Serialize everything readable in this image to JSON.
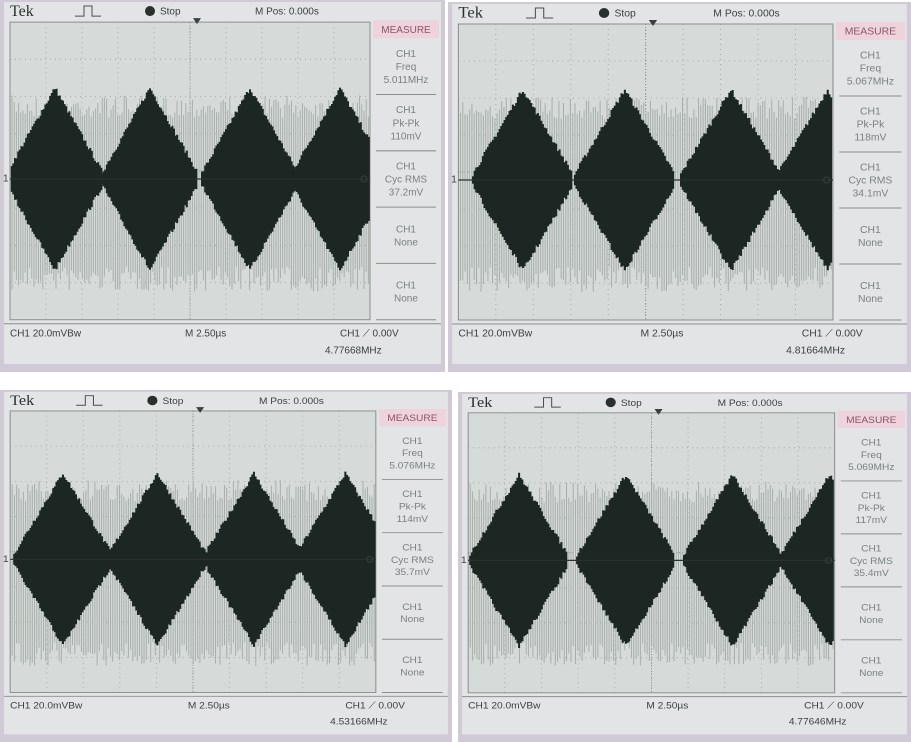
{
  "panels": [
    {
      "header": {
        "brand": "Tek",
        "status": "Stop",
        "position": "M Pos: 0.000s",
        "menu": "MEASURE"
      },
      "channel_marker": "1",
      "measurements": [
        {
          "channel": "CH1",
          "label": "Freq",
          "value": "5.011MHz"
        },
        {
          "channel": "CH1",
          "label": "Pk-Pk",
          "value": "110mV"
        },
        {
          "channel": "CH1",
          "label": "Cyc RMS",
          "value": "37.2mV"
        },
        {
          "channel": "CH1",
          "value": "None"
        },
        {
          "channel": "CH1",
          "value": "None"
        }
      ],
      "footer": {
        "scale": "CH1 20.0mVBw",
        "timebase": "M 2.50µs",
        "trigger": "CH1 ⟋ 0.00V",
        "frequency": "4.77668MHz"
      }
    },
    {
      "header": {
        "brand": "Tek",
        "status": "Stop",
        "position": "M Pos: 0.000s",
        "menu": "MEASURE"
      },
      "channel_marker": "1",
      "measurements": [
        {
          "channel": "CH1",
          "label": "Freq",
          "value": "5.067MHz"
        },
        {
          "channel": "CH1",
          "label": "Pk-Pk",
          "value": "118mV"
        },
        {
          "channel": "CH1",
          "label": "Cyc RMS",
          "value": "34.1mV"
        },
        {
          "channel": "CH1",
          "value": "None"
        },
        {
          "channel": "CH1",
          "value": "None"
        }
      ],
      "footer": {
        "scale": "CH1 20.0mVBw",
        "timebase": "M 2.50µs",
        "trigger": "CH1 ⟋ 0.00V",
        "frequency": "4.81664MHz"
      }
    },
    {
      "header": {
        "brand": "Tek",
        "status": "Stop",
        "position": "M Pos: 0.000s",
        "menu": "MEASURE"
      },
      "channel_marker": "1",
      "measurements": [
        {
          "channel": "CH1",
          "label": "Freq",
          "value": "5.076MHz"
        },
        {
          "channel": "CH1",
          "label": "Pk-Pk",
          "value": "114mV"
        },
        {
          "channel": "CH1",
          "label": "Cyc RMS",
          "value": "35.7mV"
        },
        {
          "channel": "CH1",
          "value": "None"
        },
        {
          "channel": "CH1",
          "value": "None"
        }
      ],
      "footer": {
        "scale": "CH1 20.0mVBw",
        "timebase": "M 2.50µs",
        "trigger": "CH1 ⟋ 0.00V",
        "frequency": "4.53166MHz"
      }
    },
    {
      "header": {
        "brand": "Tek",
        "status": "Stop",
        "position": "M Pos: 0.000s",
        "menu": "MEASURE"
      },
      "channel_marker": "1",
      "measurements": [
        {
          "channel": "CH1",
          "label": "Freq",
          "value": "5.069MHz"
        },
        {
          "channel": "CH1",
          "label": "Pk-Pk",
          "value": "117mV"
        },
        {
          "channel": "CH1",
          "label": "Cyc RMS",
          "value": "35.4mV"
        },
        {
          "channel": "CH1",
          "value": "None"
        },
        {
          "channel": "CH1",
          "value": "None"
        }
      ],
      "footer": {
        "scale": "CH1 20.0mVBw",
        "timebase": "M 2.50µs",
        "trigger": "CH1 ⟋ 0.00V",
        "frequency": "4.77646MHz"
      }
    }
  ]
}
